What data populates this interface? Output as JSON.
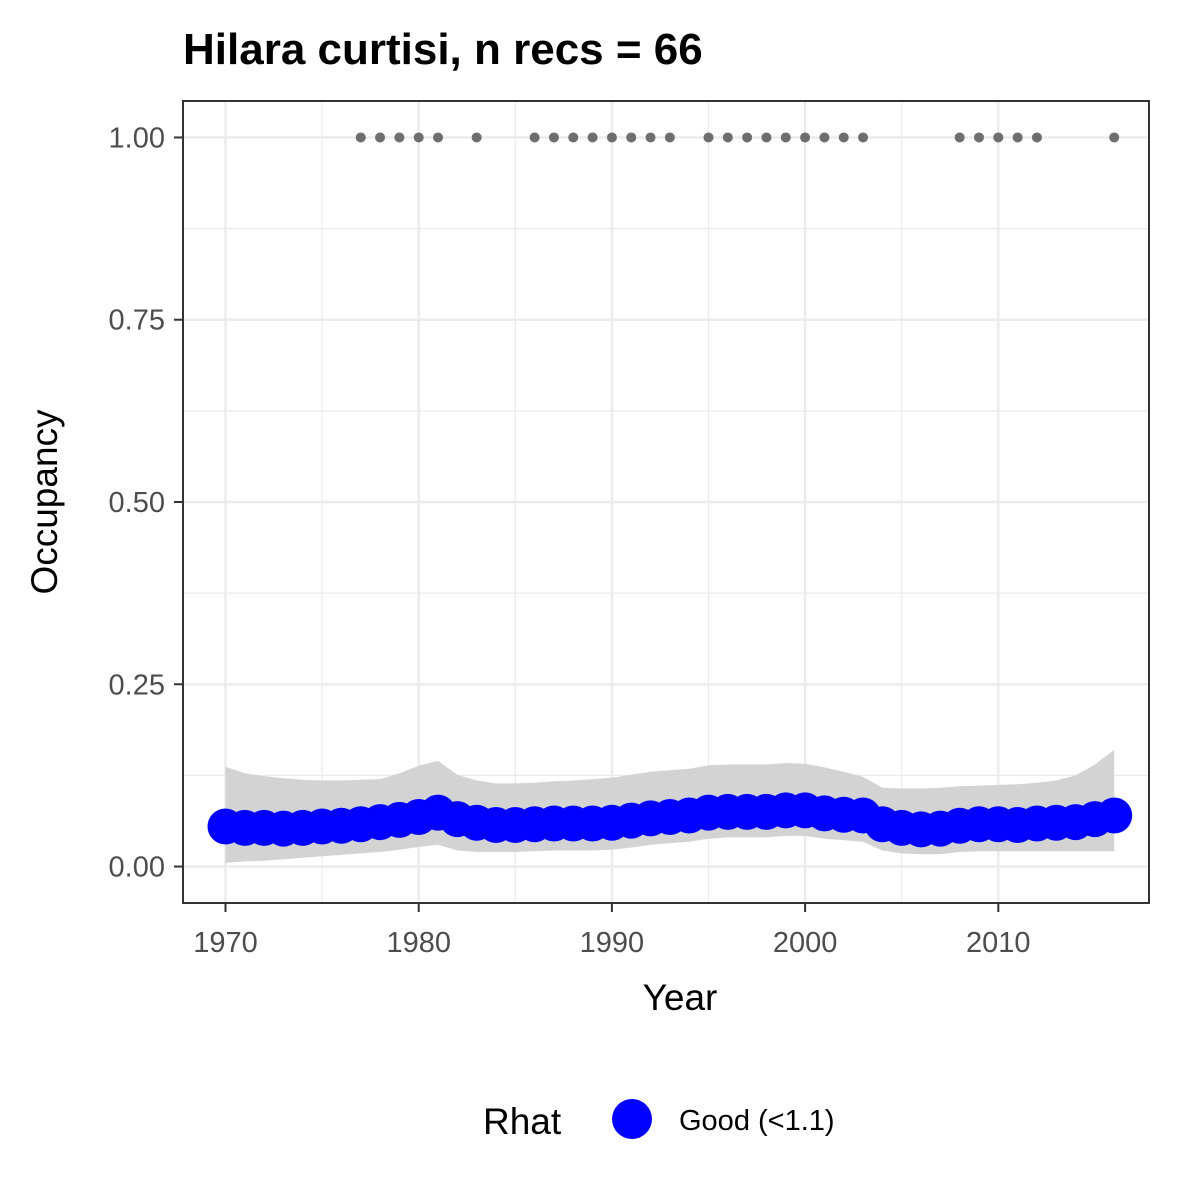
{
  "chart_data": {
    "type": "line",
    "title": "Hilara curtisi, n recs = 66",
    "xlabel": "Year",
    "ylabel": "Occupancy",
    "xlim": [
      1967.8,
      2017.8
    ],
    "ylim": [
      -0.05,
      1.05
    ],
    "x_ticks": [
      1970,
      1980,
      1990,
      2000,
      2010
    ],
    "x_tick_labels": [
      "1970",
      "1980",
      "1990",
      "2000",
      "2010"
    ],
    "y_ticks": [
      0,
      0.25,
      0.5,
      0.75,
      1.0
    ],
    "y_tick_labels": [
      "0.00",
      "0.25",
      "0.50",
      "0.75",
      "1.00"
    ],
    "grid": true,
    "legend": {
      "title": "Rhat",
      "position": "bottom",
      "entries": [
        {
          "label": "Good (<1.1)",
          "color": "#0000ff"
        }
      ]
    },
    "series": [
      {
        "name": "Good (<1.1)",
        "color": "#0000ff",
        "x": [
          1970,
          1971,
          1972,
          1973,
          1974,
          1975,
          1976,
          1977,
          1978,
          1979,
          1980,
          1981,
          1982,
          1983,
          1984,
          1985,
          1986,
          1987,
          1988,
          1989,
          1990,
          1991,
          1992,
          1993,
          1994,
          1995,
          1996,
          1997,
          1998,
          1999,
          2000,
          2001,
          2002,
          2003,
          2004,
          2005,
          2006,
          2007,
          2008,
          2009,
          2010,
          2011,
          2012,
          2013,
          2014,
          2015,
          2016
        ],
        "y": [
          0.055,
          0.053,
          0.053,
          0.052,
          0.053,
          0.055,
          0.056,
          0.058,
          0.061,
          0.064,
          0.068,
          0.074,
          0.065,
          0.06,
          0.057,
          0.057,
          0.058,
          0.059,
          0.059,
          0.059,
          0.06,
          0.063,
          0.066,
          0.068,
          0.07,
          0.074,
          0.075,
          0.075,
          0.075,
          0.077,
          0.077,
          0.073,
          0.071,
          0.07,
          0.058,
          0.053,
          0.051,
          0.052,
          0.056,
          0.058,
          0.058,
          0.057,
          0.059,
          0.06,
          0.061,
          0.065,
          0.07
        ],
        "lower": [
          0.005,
          0.007,
          0.008,
          0.01,
          0.012,
          0.014,
          0.016,
          0.018,
          0.02,
          0.023,
          0.027,
          0.03,
          0.022,
          0.02,
          0.02,
          0.02,
          0.021,
          0.022,
          0.022,
          0.022,
          0.023,
          0.026,
          0.03,
          0.032,
          0.034,
          0.038,
          0.04,
          0.04,
          0.04,
          0.042,
          0.042,
          0.038,
          0.036,
          0.034,
          0.022,
          0.018,
          0.017,
          0.017,
          0.02,
          0.021,
          0.021,
          0.021,
          0.021,
          0.021,
          0.021,
          0.021,
          0.021
        ],
        "upper": [
          0.137,
          0.128,
          0.124,
          0.121,
          0.119,
          0.118,
          0.118,
          0.119,
          0.12,
          0.128,
          0.138,
          0.145,
          0.126,
          0.118,
          0.114,
          0.114,
          0.115,
          0.117,
          0.118,
          0.12,
          0.122,
          0.126,
          0.13,
          0.132,
          0.134,
          0.139,
          0.14,
          0.14,
          0.14,
          0.142,
          0.141,
          0.136,
          0.13,
          0.123,
          0.108,
          0.107,
          0.107,
          0.108,
          0.11,
          0.111,
          0.112,
          0.113,
          0.115,
          0.118,
          0.125,
          0.14,
          0.16
        ]
      }
    ],
    "records": {
      "color": "#6e6e6e",
      "x": [
        1977,
        1978,
        1979,
        1980,
        1981,
        1983,
        1986,
        1987,
        1988,
        1989,
        1990,
        1991,
        1992,
        1993,
        1995,
        1996,
        1997,
        1998,
        1999,
        2000,
        2001,
        2002,
        2003,
        2008,
        2009,
        2010,
        2011,
        2012,
        2016
      ],
      "y": [
        1,
        1,
        1,
        1,
        1,
        1,
        1,
        1,
        1,
        1,
        1,
        1,
        1,
        1,
        1,
        1,
        1,
        1,
        1,
        1,
        1,
        1,
        1,
        1,
        1,
        1,
        1,
        1,
        1
      ]
    },
    "ribbon_color": "#d3d3d3"
  }
}
